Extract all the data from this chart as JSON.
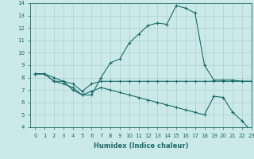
{
  "xlabel": "Humidex (Indice chaleur)",
  "xlim": [
    -0.5,
    23
  ],
  "ylim": [
    4,
    14
  ],
  "xticks": [
    0,
    1,
    2,
    3,
    4,
    5,
    6,
    7,
    8,
    9,
    10,
    11,
    12,
    13,
    14,
    15,
    16,
    17,
    18,
    19,
    20,
    21,
    22,
    23
  ],
  "yticks": [
    4,
    5,
    6,
    7,
    8,
    9,
    10,
    11,
    12,
    13,
    14
  ],
  "line_color": "#1a6b6b",
  "background_color": "#cce9e9",
  "grid_color": "#aad0d0",
  "line1_x": [
    0,
    1,
    2,
    3,
    4,
    5,
    6,
    7,
    8,
    9,
    10,
    11,
    12,
    13,
    14,
    15,
    16,
    17,
    18,
    19,
    20,
    21,
    22,
    23
  ],
  "line1_y": [
    8.3,
    8.3,
    8.0,
    7.7,
    7.0,
    6.6,
    6.6,
    8.0,
    9.2,
    9.5,
    10.8,
    11.5,
    12.2,
    12.4,
    12.3,
    13.8,
    13.6,
    13.2,
    9.0,
    7.8,
    7.8,
    7.8,
    7.7,
    7.7
  ],
  "line2_x": [
    0,
    1,
    2,
    3,
    4,
    5,
    6,
    7,
    8,
    9,
    10,
    11,
    12,
    13,
    14,
    15,
    16,
    17,
    18,
    19,
    20,
    21,
    22,
    23
  ],
  "line2_y": [
    8.3,
    8.3,
    7.7,
    7.7,
    7.5,
    6.9,
    7.5,
    7.7,
    7.7,
    7.7,
    7.7,
    7.7,
    7.7,
    7.7,
    7.7,
    7.7,
    7.7,
    7.7,
    7.7,
    7.7,
    7.7,
    7.7,
    7.7,
    7.7
  ],
  "line3_x": [
    0,
    1,
    2,
    3,
    4,
    5,
    6,
    7,
    8,
    9,
    10,
    11,
    12,
    13,
    14,
    15,
    16,
    17,
    18,
    19,
    20,
    21,
    22,
    23
  ],
  "line3_y": [
    8.3,
    8.3,
    7.7,
    7.5,
    7.2,
    6.6,
    6.9,
    7.2,
    7.0,
    6.8,
    6.6,
    6.4,
    6.2,
    6.0,
    5.8,
    5.6,
    5.4,
    5.2,
    5.0,
    6.5,
    6.4,
    5.2,
    4.5,
    3.7
  ]
}
